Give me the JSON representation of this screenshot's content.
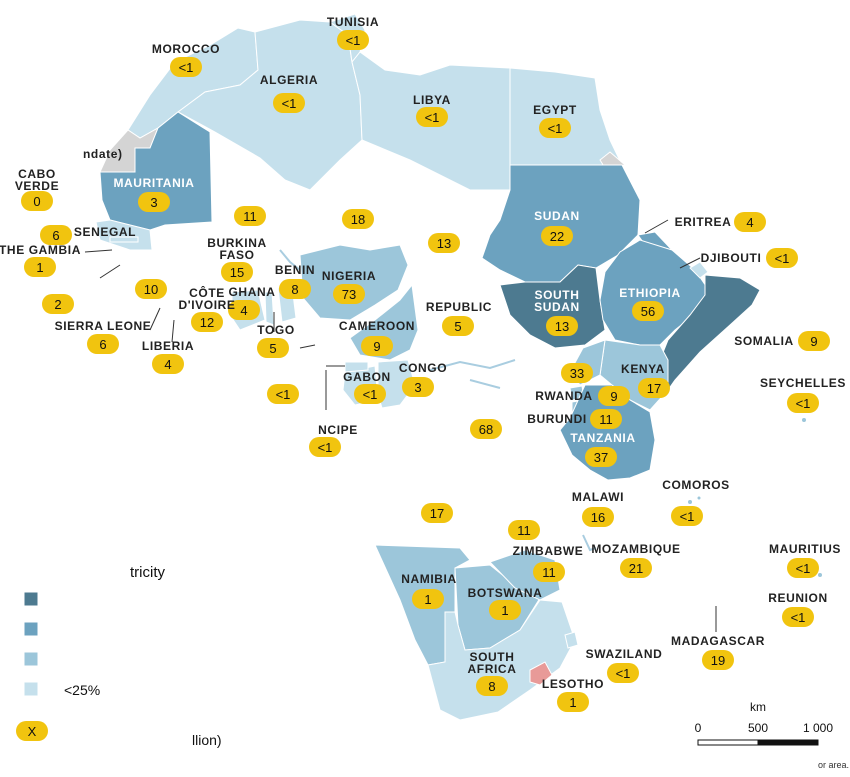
{
  "colors": {
    "darkest": "#4d7a90",
    "dark": "#6ca2bf",
    "mid": "#9cc6da",
    "light": "#c5e0ec",
    "grey": "#d4d4d4",
    "lesotho": "#e89a98",
    "badge": "#f1c40f"
  },
  "labels": {
    "tunisia": "TUNISIA",
    "morocco": "MOROCCO",
    "algeria": "ALGERIA",
    "libya": "LIBYA",
    "egypt": "EGYPT",
    "mandate": "ndate)",
    "cabo_verde_1": "CABO",
    "cabo_verde_2": "VERDE",
    "mauritania": "MAURITANIA",
    "senegal": "SENEGAL",
    "the_gambia": "THE GAMBIA",
    "sierra_leone": "SIERRA LEONE",
    "liberia": "LIBERIA",
    "burkina_1": "BURKINA",
    "burkina_2": "FASO",
    "cote_1": "CÔTE",
    "cote_2": "D'IVOIRE",
    "ghana": "GHANA",
    "togo": "TOGO",
    "benin": "BENIN",
    "nigeria": "NIGERIA",
    "cameroon": "CAMEROON",
    "republic": "REPUBLIC",
    "gabon": "GABON",
    "congo": "CONGO",
    "ncipe": "NCIPE",
    "sudan": "SUDAN",
    "south_sudan_1": "SOUTH",
    "south_sudan_2": "SUDAN",
    "eritrea": "ERITREA",
    "djibouti": "DJIBOUTI",
    "ethiopia": "ETHIOPIA",
    "somalia": "SOMALIA",
    "kenya": "KENYA",
    "rwanda": "RWANDA",
    "burundi": "BURUNDI",
    "tanzania": "TANZANIA",
    "seychelles": "SEYCHELLES",
    "comoros": "COMOROS",
    "malawi": "MALAWI",
    "zimbabwe": "ZIMBABWE",
    "mozambique": "MOZAMBIQUE",
    "namibia": "NAMIBIA",
    "botswana": "BOTSWANA",
    "south_africa_1": "SOUTH",
    "south_africa_2": "AFRICA",
    "swaziland": "SWAZILAND",
    "lesotho": "LESOTHO",
    "madagascar": "MADAGASCAR",
    "mauritius": "MAURITIUS",
    "reunion": "REUNION"
  },
  "values": {
    "tunisia": "<1",
    "morocco": "<1",
    "algeria": "<1",
    "libya": "<1",
    "egypt": "<1",
    "cabo_verde": "0",
    "mauritania": "3",
    "mali": "11",
    "niger": "18",
    "chad": "13",
    "senegal": "6",
    "the_gambia": "1",
    "guinea_bissau": "2",
    "guinea": "10",
    "sierra_leone": "6",
    "liberia": "4",
    "burkina_faso": "15",
    "cote_divoire": "12",
    "ghana": "4",
    "togo": "5",
    "benin": "8",
    "nigeria": "73",
    "cameroon": "9",
    "car": "5",
    "gabon": "<1",
    "congo": "3",
    "equatorial_guinea": "<1",
    "sao_tome": "<1",
    "sudan": "22",
    "south_sudan": "13",
    "eritrea": "4",
    "djibouti": "<1",
    "ethiopia": "56",
    "somalia": "9",
    "kenya": "17",
    "uganda": "33",
    "rwanda": "9",
    "burundi": "11",
    "tanzania": "37",
    "drc": "68",
    "seychelles": "<1",
    "comoros": "<1",
    "malawi": "16",
    "angola": "17",
    "zambia": "11",
    "zimbabwe": "11",
    "mozambique": "21",
    "namibia": "1",
    "botswana": "1",
    "south_africa": "8",
    "swaziland": "<1",
    "lesotho": "1",
    "madagascar": "19",
    "mauritius": "<1",
    "reunion": "<1"
  },
  "legend": {
    "title": "tricity",
    "low_label": "<25%",
    "badge_label": "X",
    "unit_label": "llion)"
  },
  "scale": {
    "unit": "km",
    "t0": "0",
    "t1": "500",
    "t2": "1 000"
  },
  "footnote": "or area."
}
